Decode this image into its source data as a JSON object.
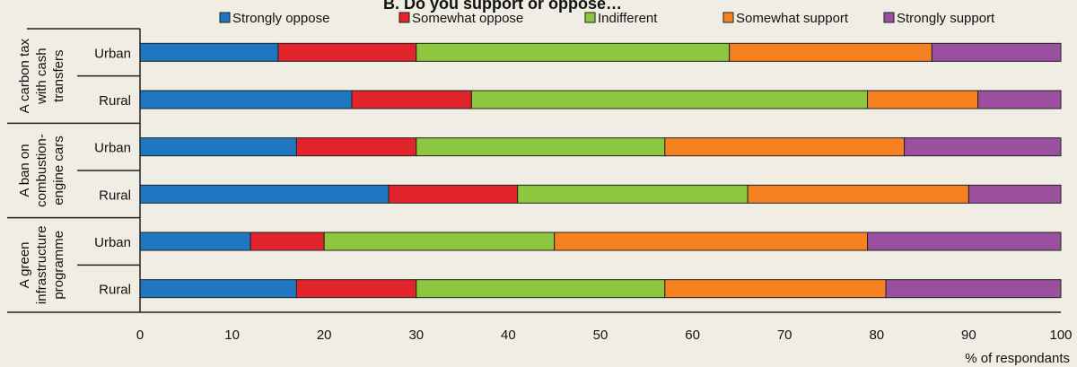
{
  "chart_data": {
    "type": "bar",
    "orientation": "horizontal",
    "stacked": true,
    "title": "B. Do you support or oppose…",
    "xlabel": "% of respondants",
    "xlim": [
      0,
      100
    ],
    "x_ticks": [
      0,
      10,
      20,
      30,
      40,
      50,
      60,
      70,
      80,
      90,
      100
    ],
    "grid": false,
    "legend_position": "top",
    "groups": [
      {
        "label": "A carbon tax with cash transfers",
        "lines": [
          "A carbon tax",
          "with cash",
          "transfers"
        ]
      },
      {
        "label": "A ban on combustion-engine cars",
        "lines": [
          "A ban on",
          "combustion-",
          "engine cars"
        ]
      },
      {
        "label": "A green infrastructure programme",
        "lines": [
          "A green",
          "infrastructure",
          "programme"
        ]
      }
    ],
    "categories": [
      "Urban",
      "Rural",
      "Urban",
      "Rural",
      "Urban",
      "Rural"
    ],
    "series": [
      {
        "name": "Strongly oppose",
        "color": "#1f77c2",
        "values": [
          15,
          23,
          17,
          27,
          12,
          17
        ]
      },
      {
        "name": "Somewhat oppose",
        "color": "#e1242b",
        "values": [
          15,
          13,
          13,
          14,
          8,
          13
        ]
      },
      {
        "name": "Indifferent",
        "color": "#8dc63f",
        "values": [
          34,
          43,
          27,
          25,
          25,
          27
        ]
      },
      {
        "name": "Somewhat support",
        "color": "#f68121",
        "values": [
          22,
          12,
          26,
          24,
          34,
          24
        ]
      },
      {
        "name": "Strongly support",
        "color": "#9b4f9f",
        "values": [
          14,
          9,
          17,
          10,
          21,
          19
        ]
      }
    ]
  }
}
